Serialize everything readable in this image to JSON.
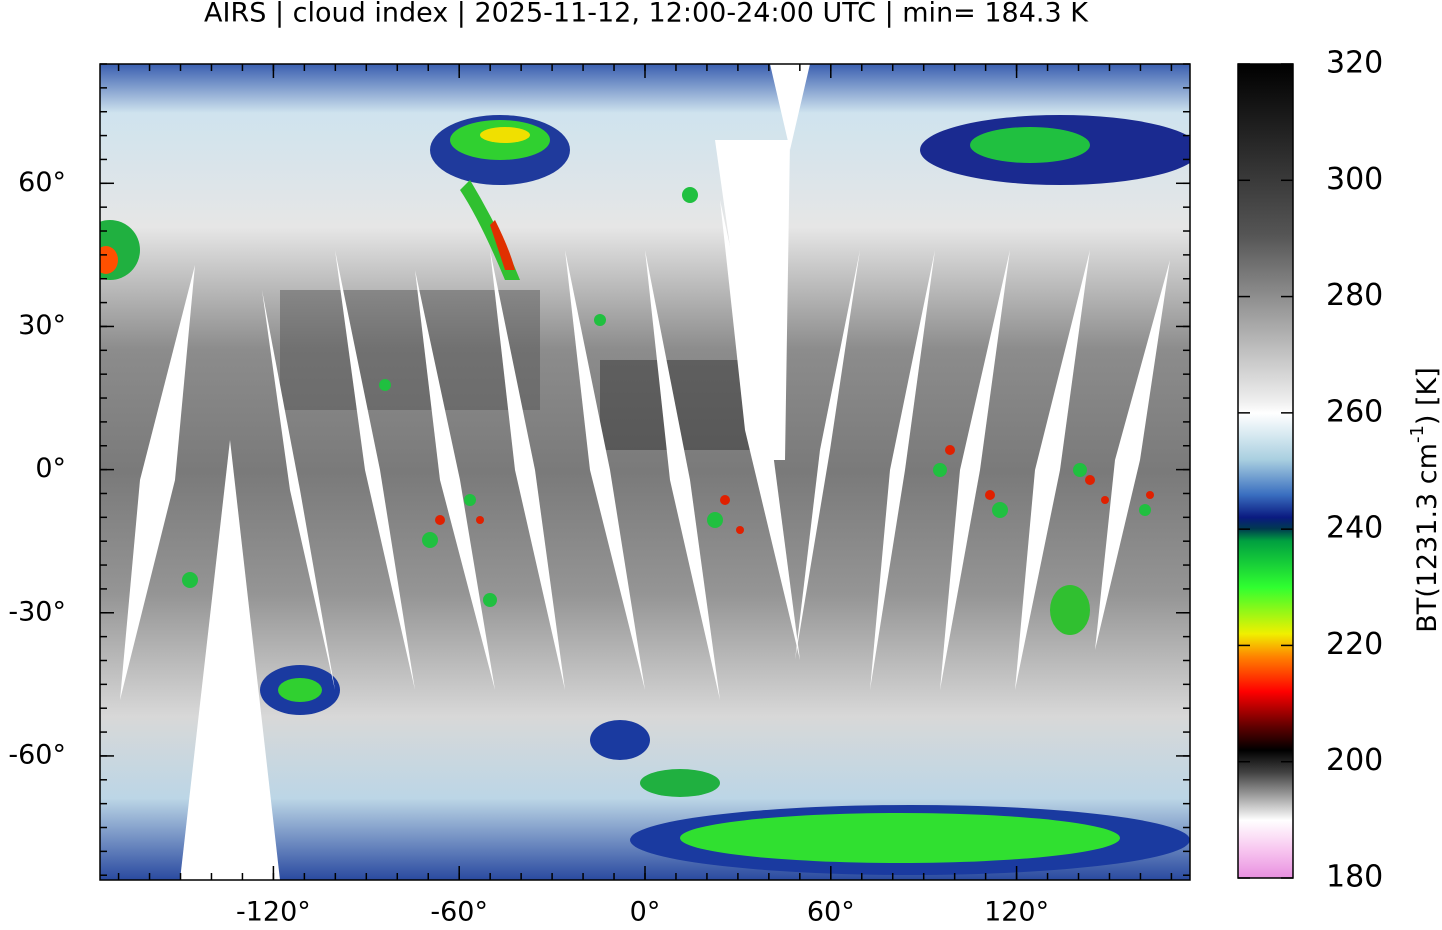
{
  "map": {
    "title": "AIRS | cloud index | 2025-11-12, 12:00-24:00 UTC | min= 184.3 K",
    "xlim": [
      -176,
      176
    ],
    "ylim": [
      -86,
      85
    ],
    "xticks": [
      {
        "value": -120,
        "label": "-120°"
      },
      {
        "value": -60,
        "label": "-60°"
      },
      {
        "value": 0,
        "label": "0°"
      },
      {
        "value": 60,
        "label": "60°"
      },
      {
        "value": 120,
        "label": "120°"
      }
    ],
    "yticks": [
      {
        "value": 60,
        "label": "60°"
      },
      {
        "value": 30,
        "label": "30°"
      },
      {
        "value": 0,
        "label": "0°"
      },
      {
        "value": -30,
        "label": "-30°"
      },
      {
        "value": -60,
        "label": "-60°"
      }
    ],
    "colorbar": {
      "label_main": "BT(1231.3 cm",
      "label_sup": "-1",
      "label_end": ") [K]",
      "lim": [
        180,
        320
      ],
      "ticks": [
        180,
        200,
        220,
        240,
        260,
        280,
        300,
        320
      ]
    }
  }
}
